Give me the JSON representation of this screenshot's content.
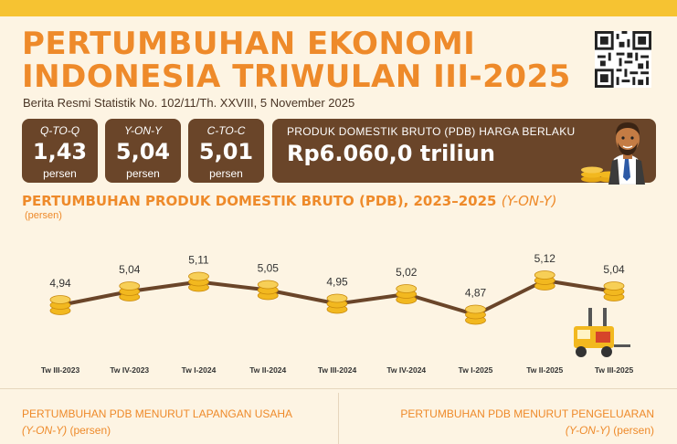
{
  "header": {
    "title_line1": "PERTUMBUHAN EKONOMI",
    "title_line2": "INDONESIA TRIWULAN III-2025",
    "subtitle": "Berita Resmi Statistik No. 102/11/Th. XXVIII, 5 November 2025"
  },
  "stats": [
    {
      "label": "Q-TO-Q",
      "value": "1,43",
      "unit": "persen"
    },
    {
      "label": "Y-ON-Y",
      "value": "5,04",
      "unit": "persen"
    },
    {
      "label": "C-TO-C",
      "value": "5,01",
      "unit": "persen"
    }
  ],
  "pdb": {
    "label": "PRODUK DOMESTIK BRUTO (PDB) HARGA BERLAKU",
    "value": "Rp6.060,0 triliun"
  },
  "chart_title": {
    "main": "PERTUMBUHAN PRODUK DOMESTIK BRUTO (PDB), 2023–2025 ",
    "yoy": "(Y-ON-Y)",
    "unit": "(persen)"
  },
  "chart_data": {
    "type": "line",
    "categories": [
      "Tw III-2023",
      "Tw IV-2023",
      "Tw I-2024",
      "Tw II-2024",
      "Tw III-2024",
      "Tw IV-2024",
      "Tw I-2025",
      "Tw II-2025",
      "Tw III-2025"
    ],
    "values": [
      4.94,
      5.04,
      5.11,
      5.05,
      4.95,
      5.02,
      4.87,
      5.12,
      5.04
    ],
    "value_labels": [
      "4,94",
      "5,04",
      "5,11",
      "5,05",
      "4,95",
      "5,02",
      "4,87",
      "5,12",
      "5,04"
    ],
    "line_color": "#6a4529",
    "marker_color": "#f2b81f"
  },
  "sections": {
    "left_title": "PERTUMBUHAN PDB MENURUT LAPANGAN USAHA",
    "left_yoy": "(Y-ON-Y)",
    "left_unit": " (persen)",
    "right_title": "PERTUMBUHAN PDB MENURUT PENGELUARAN",
    "right_yoy": "(Y-ON-Y)",
    "right_unit": " (persen)"
  },
  "colors": {
    "accent": "#ee8a2a",
    "brown": "#6a4529",
    "gold": "#f2b81f",
    "background": "#fdf4e3"
  }
}
